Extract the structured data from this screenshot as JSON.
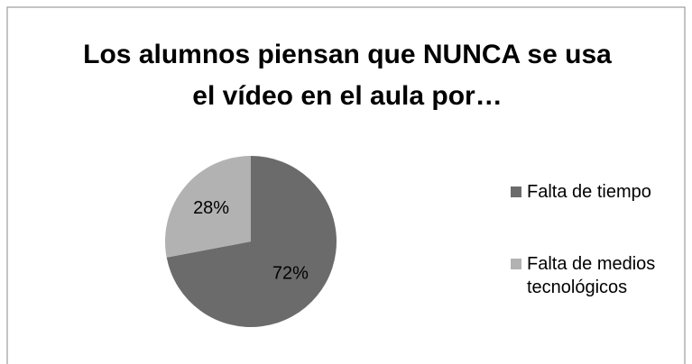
{
  "chart_data": {
    "type": "pie",
    "title": "Los alumnos piensan que NUNCA se usa el vídeo en el aula por…",
    "categories": [
      "Falta de tiempo",
      "Falta de medios tecnológicos"
    ],
    "values": [
      72,
      28
    ],
    "value_labels": [
      "72%",
      "28%"
    ],
    "colors": [
      "#6b6b6b",
      "#b2b2b2"
    ],
    "legend": "right"
  }
}
